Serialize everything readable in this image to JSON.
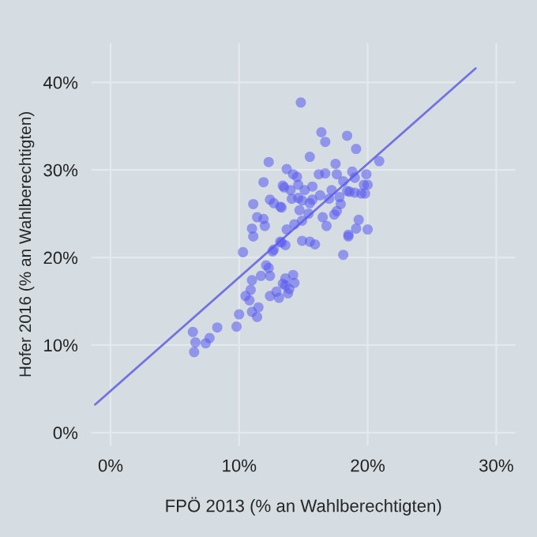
{
  "chart_data": {
    "type": "scatter",
    "xlabel": "FPÖ 2013 (% an Wahlberechtigten)",
    "ylabel": "Hofer 2016 (% an Wahlberechtigten)",
    "xlim": [
      -1.5,
      31.5
    ],
    "ylim": [
      -1.5,
      44.5
    ],
    "xticks": [
      {
        "value": 0,
        "label": "0%"
      },
      {
        "value": 10,
        "label": "10%"
      },
      {
        "value": 20,
        "label": "20%"
      },
      {
        "value": 30,
        "label": "30%"
      }
    ],
    "yticks": [
      {
        "value": 0,
        "label": "0%"
      },
      {
        "value": 10,
        "label": "10%"
      },
      {
        "value": 20,
        "label": "20%"
      },
      {
        "value": 30,
        "label": "30%"
      },
      {
        "value": 40,
        "label": "40%"
      }
    ],
    "grid": true,
    "series": [
      {
        "marker": "circle",
        "color": "#5a5af0",
        "x": [
          6.4,
          6.6,
          6.5,
          7.4,
          7.7,
          8.3,
          9.8,
          10.0,
          10.3,
          10.5,
          10.8,
          10.9,
          11.0,
          11.0,
          11.4,
          11.5,
          11.7,
          12.1,
          12.3,
          11.1,
          12.4,
          12.4,
          12.9,
          13.1,
          13.4,
          13.6,
          13.8,
          13.9,
          14.2,
          14.3,
          13.6,
          12.6,
          12.7,
          13.2,
          13.6,
          14.9,
          15.5,
          15.9,
          18.5,
          18.1,
          14.8,
          12.3,
          15.5,
          13.7,
          14.2,
          14.5,
          11.9,
          13.4,
          13.5,
          14.0,
          15.1,
          15.7,
          14.6,
          11.1,
          12.4,
          12.7,
          13.2,
          14.1,
          14.6,
          14.9,
          15.5,
          14.7,
          11.4,
          11.9,
          11.0,
          12.0,
          13.7,
          14.3,
          14.9,
          15.4,
          13.3,
          16.4,
          18.4,
          16.7,
          19.1,
          20.9,
          17.5,
          16.2,
          16.7,
          17.6,
          18.8,
          19.9,
          18.1,
          19.0,
          19.7,
          20.0,
          18.4,
          18.6,
          19.0,
          19.5,
          19.8,
          17.8,
          17.2,
          16.3,
          15.7,
          17.0,
          17.9,
          17.6,
          17.4,
          16.5,
          19.3,
          16.8,
          19.1,
          20.0,
          18.5,
          13.3
        ],
        "values": [
          11.5,
          10.3,
          9.2,
          10.2,
          10.8,
          12.0,
          12.1,
          13.5,
          20.6,
          15.6,
          15.1,
          16.3,
          17.4,
          13.8,
          13.2,
          14.3,
          17.9,
          19.1,
          18.8,
          22.4,
          17.9,
          15.6,
          16.1,
          15.4,
          17.0,
          17.6,
          15.9,
          16.4,
          18.0,
          17.1,
          16.8,
          20.7,
          20.9,
          21.8,
          21.4,
          21.9,
          21.8,
          21.5,
          22.4,
          20.3,
          37.7,
          30.9,
          31.5,
          30.1,
          29.5,
          29.2,
          28.6,
          28.2,
          28.0,
          27.7,
          27.7,
          28.1,
          28.3,
          26.1,
          26.6,
          26.2,
          25.8,
          26.7,
          26.8,
          26.5,
          26.2,
          25.4,
          24.6,
          24.4,
          23.3,
          23.6,
          23.2,
          23.8,
          24.2,
          25.0,
          21.7,
          34.3,
          33.9,
          33.2,
          32.4,
          31.0,
          30.7,
          29.5,
          29.6,
          29.5,
          29.8,
          29.5,
          28.7,
          29.1,
          28.3,
          28.3,
          27.6,
          27.5,
          27.4,
          27.3,
          27.3,
          26.9,
          27.7,
          27.1,
          26.6,
          26.7,
          26.1,
          25.3,
          24.9,
          24.6,
          24.3,
          23.6,
          23.3,
          23.2,
          22.6,
          25.7
        ]
      },
      {
        "type": "line",
        "marker": "none",
        "color": "#7373e0",
        "x": [
          -1.2,
          28.4
        ],
        "values": [
          3.2,
          41.6
        ]
      }
    ]
  }
}
